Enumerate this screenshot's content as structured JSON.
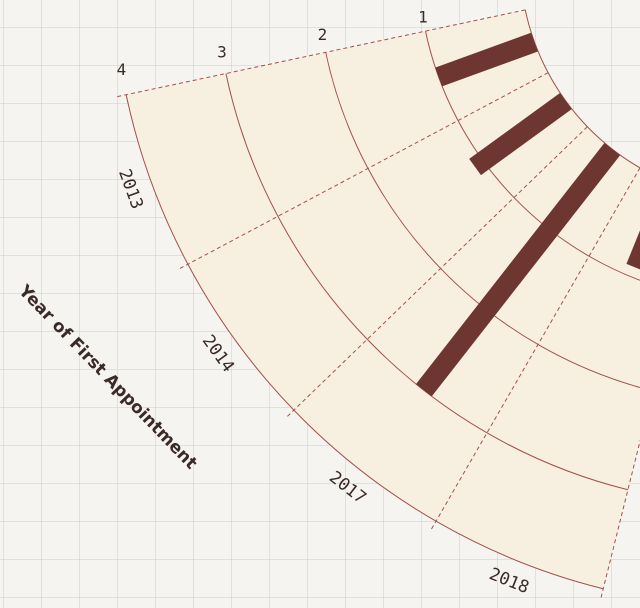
{
  "chart_data": {
    "type": "radial-bar",
    "axis_title": "Year of First Appointment",
    "categories": [
      "2013",
      "2014",
      "2017",
      "2018"
    ],
    "values": [
      1.0,
      1.1,
      3.0,
      0.9
    ],
    "color": "#6e3630",
    "rlim": [
      0,
      4
    ],
    "rticks": [
      1,
      2,
      3,
      4
    ],
    "grid": true
  }
}
